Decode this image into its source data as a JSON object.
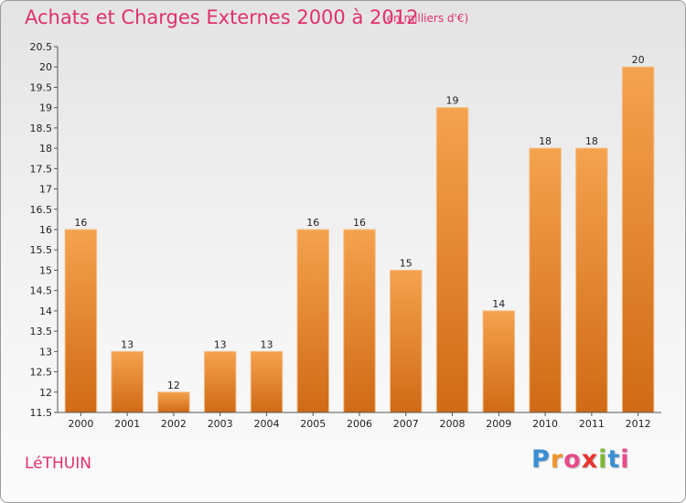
{
  "title": "Achats et Charges Externes 2000 à 2012",
  "subtitle": "(en milliers d'€)",
  "commune": "LéTHUIN",
  "logo": {
    "letters": [
      "P",
      "r",
      "o",
      "x",
      "i",
      "t",
      "i"
    ],
    "colors": [
      "#3a8fd4",
      "#f0962d",
      "#e84a8a",
      "#e8332a",
      "#7ab833",
      "#3a8fd4",
      "#e84a8a"
    ]
  },
  "colors": {
    "bar_top": "#f5a24e",
    "bar_bottom": "#d06a16",
    "text_accent": "#e0306c"
  },
  "chart_data": {
    "type": "bar",
    "title": "Achats et Charges Externes 2000 à 2012",
    "categories": [
      "2000",
      "2001",
      "2002",
      "2003",
      "2004",
      "2005",
      "2006",
      "2007",
      "2008",
      "2009",
      "2010",
      "2011",
      "2012"
    ],
    "values": [
      16,
      13,
      12,
      13,
      13,
      16,
      16,
      15,
      19,
      14,
      18,
      18,
      20
    ],
    "ylim": [
      11.5,
      20.5
    ],
    "yticks": [
      "11.5",
      "12",
      "12.5",
      "13",
      "13.5",
      "14",
      "14.5",
      "15",
      "15.5",
      "16",
      "16.5",
      "17",
      "17.5",
      "18",
      "18.5",
      "19",
      "19.5",
      "20",
      "20.5"
    ],
    "xlabel": "",
    "ylabel": "",
    "grid": false,
    "legend": "none"
  }
}
